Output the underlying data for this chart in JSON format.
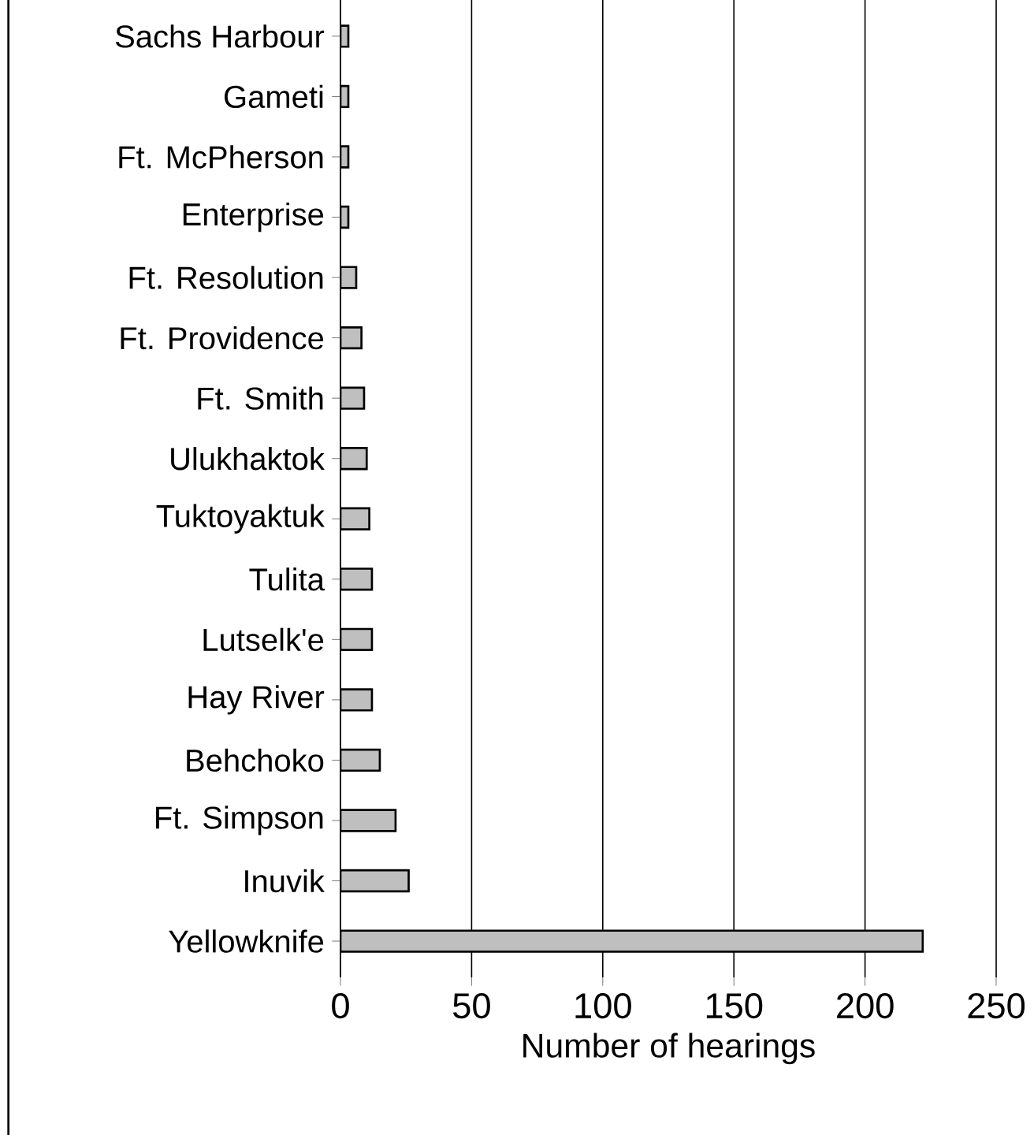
{
  "chart_data": {
    "type": "bar",
    "orientation": "horizontal",
    "xlabel": "Number of hearings",
    "categories": [
      "Sachs Harbour",
      "Gameti",
      "Ft. McPherson",
      "Enterprise",
      "Ft. Resolution",
      "Ft. Providence",
      "Ft. Smith",
      "Ulukhaktok",
      "Tuktoyaktuk",
      "Tulita",
      "Lutselk'e",
      "Hay River",
      "Behchoko",
      "Ft. Simpson",
      "Inuvik",
      "Yellowknife"
    ],
    "values": [
      3,
      3,
      3,
      3,
      6,
      8,
      9,
      10,
      11,
      12,
      12,
      12,
      15,
      21,
      26,
      222
    ],
    "color": "#bfbfbf",
    "xlim": [
      0,
      250
    ],
    "xticks": [
      0,
      50,
      100,
      150,
      200,
      250
    ],
    "grid": "x"
  }
}
